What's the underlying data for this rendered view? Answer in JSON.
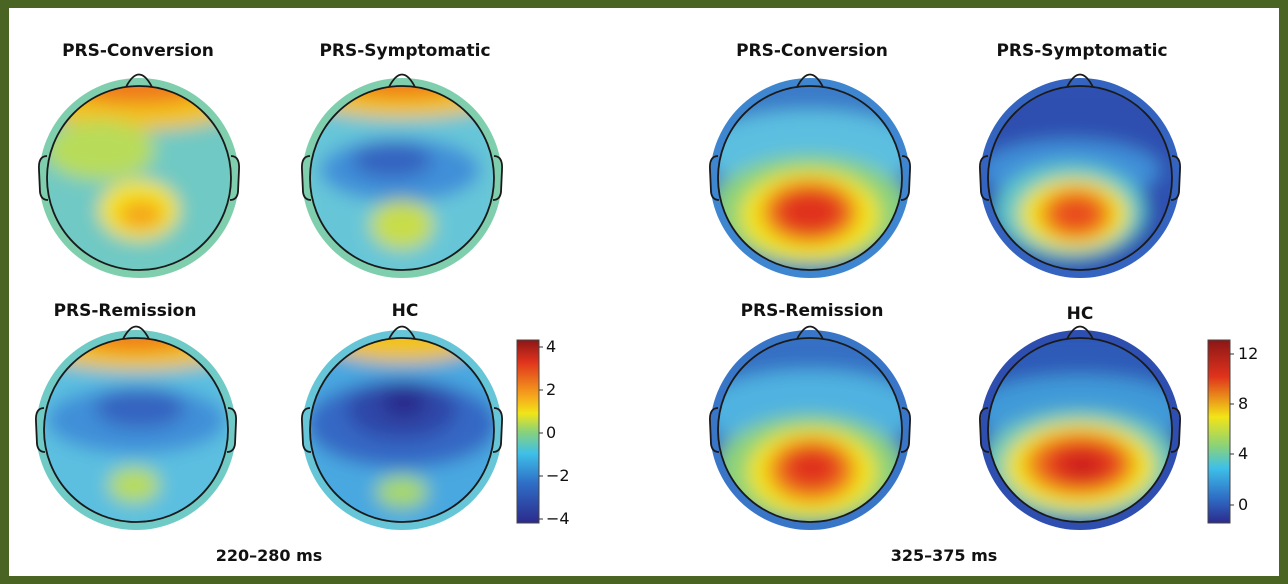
{
  "figure": {
    "panels": [
      {
        "window_label": "220–280 ms",
        "maps": [
          {
            "title": "PRS-Conversion"
          },
          {
            "title": "PRS-Symptomatic"
          },
          {
            "title": "PRS-Remission"
          },
          {
            "title": "HC"
          }
        ],
        "colorbar": {
          "ticks": [
            "4",
            "2",
            "0",
            "−2",
            "−4"
          ]
        }
      },
      {
        "window_label": "325–375 ms",
        "maps": [
          {
            "title": "PRS-Conversion"
          },
          {
            "title": "PRS-Symptomatic"
          },
          {
            "title": "PRS-Remission"
          },
          {
            "title": "HC"
          }
        ],
        "colorbar": {
          "ticks": [
            "12",
            "8",
            "4",
            "0"
          ]
        }
      }
    ],
    "colors": {
      "frame": "#4a6424",
      "scale": [
        "#2b2a8c",
        "#2f6fc7",
        "#3ec0e8",
        "#8ad27a",
        "#f2e418",
        "#f5a21c",
        "#e0331c",
        "#8c1616"
      ]
    }
  }
}
